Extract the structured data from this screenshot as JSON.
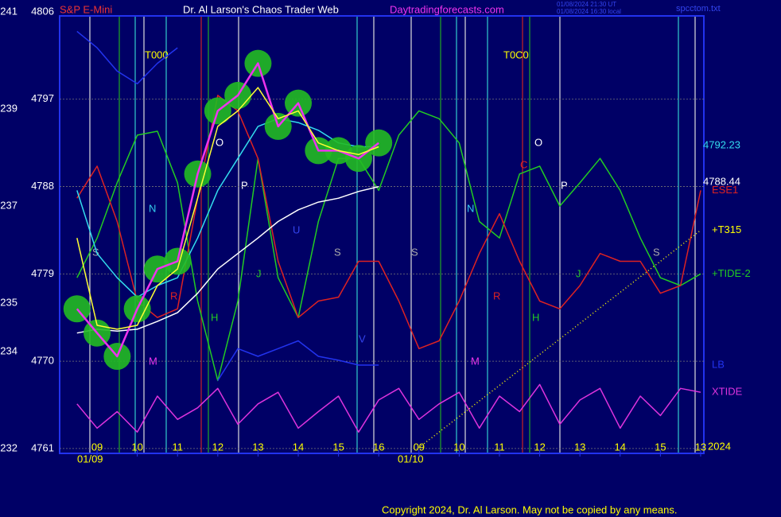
{
  "chart_data": {
    "type": "line",
    "instrument": "S&P E-Mini",
    "title": "Dr. Al Larson's Chaos Trader Web",
    "source": "Daytradingforecasts.com",
    "timestamps": [
      "01/08/2024 21:30 UT",
      "01/08/2024 16:30 local"
    ],
    "file": "spcctom.txt",
    "copyright": "Copyright 2024, Dr. Al Larson. May not be copied by any means.",
    "dates": [
      "01/09",
      "01/10",
      "2024"
    ],
    "annotations": [
      "T000",
      "T0C0",
      "N",
      "N",
      "S",
      "S",
      "S",
      "S",
      "P",
      "P",
      "O",
      "O",
      "M",
      "M",
      "H",
      "H",
      "J",
      "J",
      "R",
      "R",
      "U",
      "C",
      "V",
      "4792.23",
      "4788.44"
    ],
    "x": [
      -0.5,
      0,
      0.5,
      1,
      1.5,
      2,
      2.5,
      3,
      3.5,
      4,
      4.5,
      5,
      5.5,
      6,
      6.5,
      7,
      7.5,
      8,
      8.5,
      9,
      9.5,
      10,
      10.5,
      11,
      11.5,
      12,
      12.5,
      13,
      13.5,
      14,
      14.5,
      15
    ],
    "xlim": [
      -0.93,
      15.08
    ],
    "xticks": [
      {
        "value": 0,
        "label": "09"
      },
      {
        "value": 1,
        "label": "10"
      },
      {
        "value": 2,
        "label": "11"
      },
      {
        "value": 3,
        "label": "12"
      },
      {
        "value": 4,
        "label": "13"
      },
      {
        "value": 5,
        "label": "14"
      },
      {
        "value": 6,
        "label": "15"
      },
      {
        "value": 7,
        "label": "16"
      },
      {
        "value": 8,
        "label": "09"
      },
      {
        "value": 9,
        "label": "10"
      },
      {
        "value": 10,
        "label": "11"
      },
      {
        "value": 11,
        "label": "12"
      },
      {
        "value": 12,
        "label": "13"
      },
      {
        "value": 13,
        "label": "14"
      },
      {
        "value": 14,
        "label": "15"
      },
      {
        "value": 15,
        "label": "13"
      }
    ],
    "ylim": [
      4760.5,
      4806
    ],
    "yticks": [
      4806,
      4797,
      4788,
      4779,
      4770,
      4761
    ],
    "y2lim": [
      231.9,
      241
    ],
    "y2ticks": [
      241,
      239,
      237,
      235,
      234,
      232
    ],
    "grid": true,
    "series": [
      {
        "name": "+TIDE-2",
        "color": "#22cc22",
        "values": [
          4778.6,
          4782.7,
          4788.4,
          4793.3,
          4793.7,
          4788.4,
          4776.2,
          4768.0,
          4776.2,
          4790.9,
          4778.6,
          4774.5,
          4784.4,
          4790.9,
          4790.9,
          4787.6,
          4793.3,
          4795.8,
          4795.0,
          4792.5,
          4784.4,
          4782.7,
          4789.3,
          4790.1,
          4786.0,
          4788.4,
          4790.9,
          4787.6,
          4782.7,
          4778.6,
          4777.8,
          4779.0
        ]
      },
      {
        "name": "ESE1",
        "color": "#dd2222",
        "values": [
          4786.8,
          4790.1,
          4784.4,
          4776.2,
          4774.5,
          4775.4,
          4786.8,
          4797.4,
          4795.8,
          4790.9,
          4780.3,
          4774.5,
          4776.2,
          4776.6,
          4780.3,
          4780.3,
          4776.2,
          4771.3,
          4772.1,
          4776.2,
          4781.1,
          4785.2,
          4780.3,
          4776.2,
          4775.4,
          4777.8,
          4781.1,
          4780.3,
          4780.3,
          4777.0,
          4777.8,
          4787.6
        ]
      },
      {
        "name": "LB",
        "color": "#2233ee",
        "values": [
          4804.0,
          4802.3,
          4799.9,
          4798.6,
          4800.7,
          4802.3,
          null,
          4768.0,
          4771.3,
          4770.5,
          4771.3,
          4772.1,
          4770.5,
          4770.1,
          4769.6,
          4769.6,
          null,
          null,
          null,
          null,
          null,
          null,
          null,
          null,
          null,
          null,
          null,
          null,
          null,
          null,
          null,
          null
        ]
      },
      {
        "name": "XTIDE",
        "color": "#dd33dd",
        "values": [
          4765.6,
          4763.1,
          4764.8,
          4762.7,
          4766.4,
          4764.0,
          4765.2,
          4767.2,
          4763.5,
          4765.6,
          4766.8,
          4763.1,
          4764.8,
          4766.4,
          4762.7,
          4766.0,
          4767.2,
          4764.0,
          4765.6,
          4766.8,
          4763.1,
          4766.4,
          4764.8,
          4767.6,
          4763.5,
          4766.0,
          4767.2,
          4763.1,
          4766.4,
          4764.4,
          4767.2,
          4766.8
        ]
      },
      {
        "name": "+T315",
        "color": "#ffff00",
        "dotted": true,
        "values": [
          null,
          null,
          null,
          null,
          null,
          null,
          null,
          null,
          null,
          null,
          null,
          null,
          null,
          null,
          null,
          null,
          null,
          4761.1,
          4762.7,
          4764.3,
          4765.9,
          4767.5,
          4769.1,
          4770.7,
          4772.3,
          4773.9,
          4775.5,
          4777.1,
          4778.7,
          4780.3,
          4781.9,
          4783.5
        ]
      },
      {
        "color": "#ffffff",
        "values": [
          4772.9,
          4773.3,
          4773.1,
          4773.3,
          4774.1,
          4775.0,
          4777.0,
          4779.5,
          4781.1,
          4782.7,
          4784.4,
          4785.6,
          4786.4,
          4786.8,
          4787.5,
          4788.0,
          null,
          null,
          null,
          null,
          null,
          null,
          null,
          null,
          null,
          null,
          null,
          null,
          null,
          null,
          null,
          null
        ]
      },
      {
        "color": "#33ddee",
        "values": [
          4787.6,
          4781.1,
          4778.6,
          4776.6,
          4777.8,
          4778.6,
          4782.7,
          4787.6,
          4790.9,
          4794.2,
          4795.0,
          4794.6,
          4793.8,
          4792.5,
          4792.1,
          4792.1,
          null,
          null,
          null,
          null,
          null,
          null,
          null,
          null,
          null,
          null,
          null,
          null,
          null,
          null,
          null,
          null
        ]
      },
      {
        "color": "#ee33ee",
        "glow": "#22bb22",
        "values": [
          4775.4,
          4772.9,
          4770.5,
          4775.4,
          4779.5,
          4780.3,
          4789.3,
          4795.8,
          4797.4,
          4800.7,
          4794.2,
          4796.6,
          4791.7,
          4791.7,
          4790.9,
          4792.5,
          null,
          null,
          null,
          null,
          null,
          null,
          null,
          null,
          null,
          null,
          null,
          null,
          null,
          null,
          null,
          null
        ]
      },
      {
        "color": "#ffff33",
        "values": [
          4782.7,
          4773.7,
          4773.3,
          4773.7,
          4777.8,
          4779.5,
          4786.8,
          4794.2,
          4795.8,
          4798.2,
          4795.0,
          4795.8,
          4792.5,
          4791.7,
          4791.3,
          4792.1,
          null,
          null,
          null,
          null,
          null,
          null,
          null,
          null,
          null,
          null,
          null,
          null,
          null,
          null,
          null,
          null
        ]
      }
    ]
  }
}
